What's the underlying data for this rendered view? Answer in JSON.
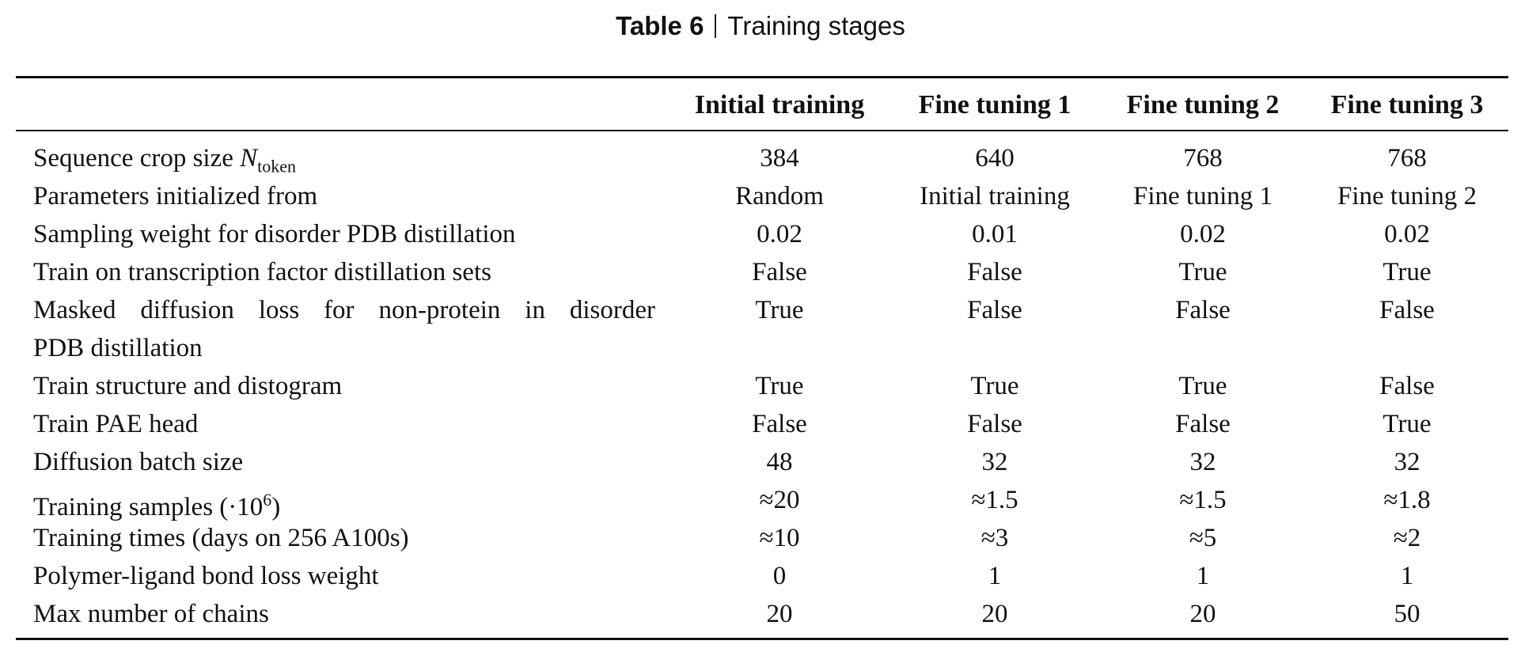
{
  "caption": {
    "number": "Table 6",
    "title": "Training stages"
  },
  "columns": [
    "Initial training",
    "Fine tuning 1",
    "Fine tuning 2",
    "Fine tuning 3"
  ],
  "rows": [
    {
      "label": "Sequence crop size ",
      "label_var": "N",
      "label_sub": "token",
      "values": [
        "384",
        "640",
        "768",
        "768"
      ]
    },
    {
      "label": "Parameters initialized from",
      "values": [
        "Random",
        "Initial training",
        "Fine tuning 1",
        "Fine tuning 2"
      ]
    },
    {
      "label": "Sampling weight for disorder PDB distillation",
      "values": [
        "0.02",
        "0.01",
        "0.02",
        "0.02"
      ]
    },
    {
      "label": "Train on transcription factor distillation sets",
      "values": [
        "False",
        "False",
        "True",
        "True"
      ]
    },
    {
      "label": "Masked diffusion loss for non-protein in disorder",
      "label_line2": "PDB distillation",
      "values": [
        "True",
        "False",
        "False",
        "False"
      ]
    },
    {
      "label": "Train structure and distogram",
      "values": [
        "True",
        "True",
        "True",
        "False"
      ]
    },
    {
      "label": "Train PAE head",
      "values": [
        "False",
        "False",
        "False",
        "True"
      ]
    },
    {
      "label": "Diffusion batch size",
      "values": [
        "48",
        "32",
        "32",
        "32"
      ]
    },
    {
      "label": "Training samples (·10",
      "label_sup": "6",
      "label_end": ")",
      "values": [
        "≈20",
        "≈1.5",
        "≈1.5",
        "≈1.8"
      ]
    },
    {
      "label": "Training times (days on 256 A100s)",
      "values": [
        "≈10",
        "≈3",
        "≈5",
        "≈2"
      ]
    },
    {
      "label": "Polymer-ligand bond loss weight",
      "values": [
        "0",
        "1",
        "1",
        "1"
      ]
    },
    {
      "label": "Max number of chains",
      "values": [
        "20",
        "20",
        "20",
        "50"
      ]
    }
  ]
}
